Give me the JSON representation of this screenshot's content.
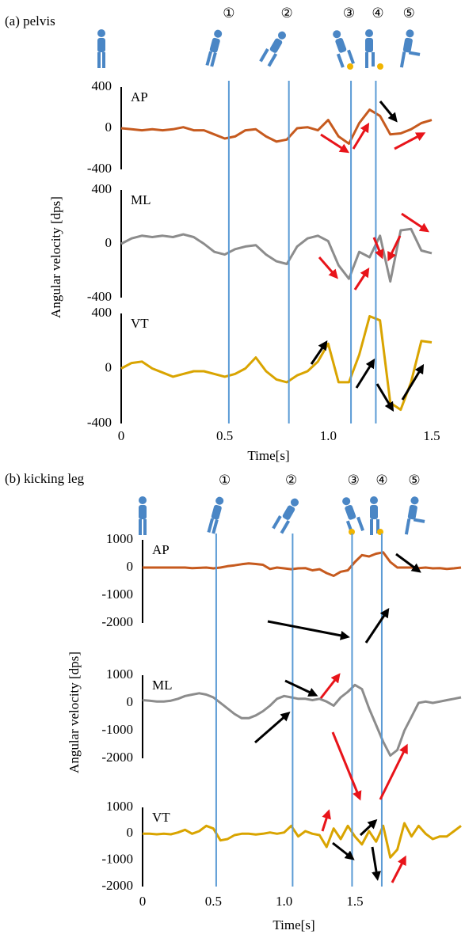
{
  "chart_data": [
    {
      "type": "line",
      "title": "(a) pelvis",
      "x_label": "Time[s]",
      "y_label": "Angular velocity [dps]",
      "xlim": [
        0,
        1.5
      ],
      "xticks": [
        0,
        0.5,
        {
          "value": 1,
          "label": "1.0"
        },
        1.5
      ],
      "events": [
        {
          "label": "①",
          "x": 0.52
        },
        {
          "label": "②",
          "x": 0.8
        },
        {
          "label": "③",
          "x": 1.1
        },
        {
          "label": "④",
          "x": 1.24
        },
        {
          "label": "⑤",
          "x": 1.39
        }
      ],
      "vlines": [
        0.52,
        0.81,
        1.11,
        1.23
      ],
      "vline_color": "#5b9bd5",
      "x": [
        0,
        0.05,
        0.1,
        0.15,
        0.2,
        0.25,
        0.3,
        0.35,
        0.4,
        0.45,
        0.5,
        0.55,
        0.6,
        0.65,
        0.7,
        0.75,
        0.8,
        0.85,
        0.9,
        0.95,
        1,
        1.05,
        1.1,
        1.15,
        1.2,
        1.25,
        1.3,
        1.35,
        1.4,
        1.45,
        1.5
      ],
      "subplots": [
        {
          "label": "AP",
          "ylim": [
            -400,
            400
          ],
          "yticks": [
            -400,
            0,
            400
          ],
          "color": "#c65a1e",
          "values": [
            0,
            -10,
            -20,
            -10,
            -20,
            -10,
            10,
            -20,
            -20,
            -60,
            -100,
            -80,
            -20,
            -10,
            -80,
            -130,
            -110,
            0,
            10,
            -20,
            80,
            -80,
            -150,
            50,
            180,
            120,
            -60,
            -50,
            -10,
            50,
            80
          ]
        },
        {
          "label": "ML",
          "ylim": [
            -400,
            400
          ],
          "yticks": [
            -400,
            0,
            400
          ],
          "color": "#8c8c8c",
          "values": [
            0,
            40,
            60,
            50,
            60,
            50,
            70,
            50,
            0,
            -60,
            -80,
            -40,
            -20,
            -10,
            -80,
            -130,
            -150,
            -20,
            40,
            60,
            20,
            -160,
            -260,
            -60,
            -100,
            60,
            -280,
            100,
            110,
            -50,
            -70
          ]
        },
        {
          "label": "VT",
          "ylim": [
            -400,
            400
          ],
          "yticks": [
            -400,
            0,
            400
          ],
          "color": "#d9a400",
          "values": [
            0,
            40,
            50,
            0,
            -30,
            -60,
            -40,
            -20,
            -20,
            -40,
            -60,
            -40,
            0,
            80,
            -20,
            -80,
            -100,
            -50,
            -20,
            50,
            180,
            -100,
            -100,
            100,
            380,
            350,
            -250,
            -300,
            -100,
            200,
            190
          ]
        }
      ]
    },
    {
      "type": "line",
      "title": "(b) kicking leg",
      "x_label": "Time[s]",
      "y_label": "Angular velocity [dps]",
      "xlim": [
        0,
        2.25
      ],
      "xticks": [
        0,
        0.5,
        {
          "value": 1,
          "label": "1.0"
        },
        1.5
      ],
      "events": [
        {
          "label": "①",
          "x": 0.58
        },
        {
          "label": "②",
          "x": 1.05
        },
        {
          "label": "③",
          "x": 1.49
        },
        {
          "label": "④",
          "x": 1.69
        },
        {
          "label": "⑤",
          "x": 1.92
        }
      ],
      "vlines": [
        0.52,
        1.06,
        1.48,
        1.69
      ],
      "vline_color": "#5b9bd5",
      "x": [
        0,
        0.05,
        0.1,
        0.15,
        0.2,
        0.25,
        0.3,
        0.35,
        0.4,
        0.45,
        0.5,
        0.55,
        0.6,
        0.65,
        0.7,
        0.75,
        0.8,
        0.85,
        0.9,
        0.95,
        1,
        1.05,
        1.1,
        1.15,
        1.2,
        1.25,
        1.3,
        1.35,
        1.4,
        1.45,
        1.5,
        1.55,
        1.6,
        1.65,
        1.7,
        1.75,
        1.8,
        1.85,
        1.9,
        1.95,
        2,
        2.05,
        2.1,
        2.15,
        2.2,
        2.25
      ],
      "subplots": [
        {
          "label": "AP",
          "ylim": [
            -2000,
            1000
          ],
          "yticks": [
            -2000,
            -1000,
            0,
            1000
          ],
          "color": "#c65a1e",
          "values": [
            0,
            0,
            0,
            0,
            0,
            0,
            0,
            -20,
            -10,
            0,
            -30,
            0,
            50,
            80,
            120,
            150,
            130,
            100,
            -50,
            0,
            -30,
            -60,
            -30,
            -20,
            -100,
            -60,
            -200,
            -300,
            -150,
            -100,
            200,
            450,
            400,
            500,
            550,
            200,
            0,
            0,
            0,
            -20,
            0,
            -30,
            -20,
            -50,
            -30,
            0
          ]
        },
        {
          "label": "ML",
          "ylim": [
            -2000,
            1000
          ],
          "yticks": [
            -2000,
            -1000,
            0,
            1000
          ],
          "color": "#8c8c8c",
          "values": [
            100,
            80,
            50,
            50,
            80,
            150,
            250,
            300,
            350,
            300,
            200,
            0,
            -200,
            -400,
            -550,
            -550,
            -450,
            -300,
            -100,
            150,
            250,
            200,
            150,
            150,
            100,
            150,
            50,
            -100,
            200,
            400,
            650,
            500,
            -200,
            -800,
            -1400,
            -1900,
            -1700,
            -1000,
            -500,
            0,
            50,
            0,
            50,
            100,
            150,
            200
          ]
        },
        {
          "label": "VT",
          "ylim": [
            -2000,
            1000
          ],
          "yticks": [
            -2000,
            -1000,
            0,
            1000
          ],
          "color": "#d9a400",
          "values": [
            0,
            0,
            -20,
            0,
            -20,
            50,
            150,
            0,
            100,
            300,
            200,
            -250,
            -200,
            -50,
            0,
            0,
            -30,
            0,
            50,
            0,
            50,
            300,
            -100,
            100,
            0,
            -50,
            -500,
            200,
            -200,
            300,
            -100,
            -400,
            100,
            -300,
            300,
            -900,
            -600,
            400,
            -100,
            300,
            0,
            -200,
            -100,
            -100,
            100,
            300
          ]
        }
      ]
    }
  ]
}
